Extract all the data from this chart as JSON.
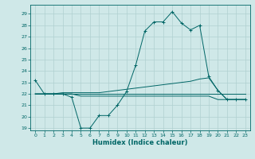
{
  "xlabel": "Humidex (Indice chaleur)",
  "background_color": "#cfe8e8",
  "grid_color": "#b0d0d0",
  "line_color": "#006666",
  "xlim": [
    -0.5,
    23.5
  ],
  "ylim": [
    18.8,
    29.8
  ],
  "yticks": [
    19,
    20,
    21,
    22,
    23,
    24,
    25,
    26,
    27,
    28,
    29
  ],
  "xticks": [
    0,
    1,
    2,
    3,
    4,
    5,
    6,
    7,
    8,
    9,
    10,
    11,
    12,
    13,
    14,
    15,
    16,
    17,
    18,
    19,
    20,
    21,
    22,
    23
  ],
  "series": [
    [
      23.2,
      22.0,
      22.0,
      22.0,
      21.7,
      19.0,
      19.0,
      20.1,
      20.1,
      21.0,
      22.2,
      24.5,
      27.5,
      28.3,
      28.3,
      29.2,
      28.2,
      27.6,
      28.0,
      23.5,
      22.3,
      21.5,
      21.5,
      21.5
    ],
    [
      22.0,
      22.0,
      22.0,
      22.0,
      22.0,
      22.0,
      22.0,
      22.0,
      22.0,
      22.0,
      22.0,
      22.0,
      22.0,
      22.0,
      22.0,
      22.0,
      22.0,
      22.0,
      22.0,
      22.0,
      22.0,
      22.0,
      22.0,
      22.0
    ],
    [
      22.0,
      22.0,
      22.0,
      22.1,
      22.1,
      22.1,
      22.1,
      22.1,
      22.2,
      22.3,
      22.4,
      22.5,
      22.6,
      22.7,
      22.8,
      22.9,
      23.0,
      23.1,
      23.3,
      23.4,
      22.3,
      21.5,
      21.5,
      21.5
    ],
    [
      22.0,
      22.0,
      22.0,
      22.0,
      22.0,
      21.8,
      21.8,
      21.8,
      21.8,
      21.8,
      21.8,
      21.8,
      21.8,
      21.8,
      21.8,
      21.8,
      21.8,
      21.8,
      21.8,
      21.8,
      21.5,
      21.5,
      21.5,
      21.5
    ]
  ],
  "markers": [
    true,
    false,
    false,
    false
  ],
  "tick_fontsize": 4.5,
  "xlabel_fontsize": 6.0
}
